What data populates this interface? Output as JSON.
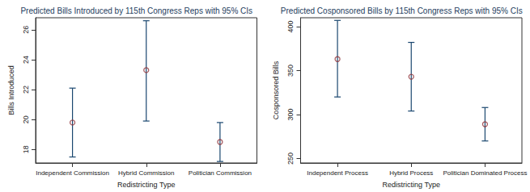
{
  "chart_data": [
    {
      "type": "scatter",
      "title": "Predicted Bills Introduced by 115th Congress Reps with 95% CIs",
      "x_label": "Redistricting Type",
      "y_label": "Bills Introduced",
      "categories": [
        "Independent Commission",
        "Hybrid Commission",
        "Politician Commission"
      ],
      "values": [
        19.8,
        23.3,
        18.5
      ],
      "ci_lower": [
        17.5,
        19.9,
        17.2
      ],
      "ci_upper": [
        22.1,
        26.6,
        19.8
      ],
      "color": "#90353b",
      "marker": "circle",
      "ylim": [
        17.1,
        26.8
      ],
      "yticks": [
        18,
        20,
        22,
        24,
        26
      ],
      "grid": false
    },
    {
      "type": "scatter",
      "title": "Predicted Cosponsored Bills by 115th Congress Reps with 95% CIs",
      "x_label": "Redistricting Type",
      "y_label": "Cosponsored Bills",
      "categories": [
        "Independent Process",
        "Hybrid Process",
        "Politician Dominated Process"
      ],
      "values": [
        363,
        343,
        289
      ],
      "ci_lower": [
        320,
        304,
        270
      ],
      "ci_upper": [
        407,
        382,
        308
      ],
      "color": "#90353b",
      "marker": "circle",
      "ylim": [
        245,
        410
      ],
      "yticks": [
        250,
        300,
        350,
        400
      ],
      "grid": false
    }
  ]
}
